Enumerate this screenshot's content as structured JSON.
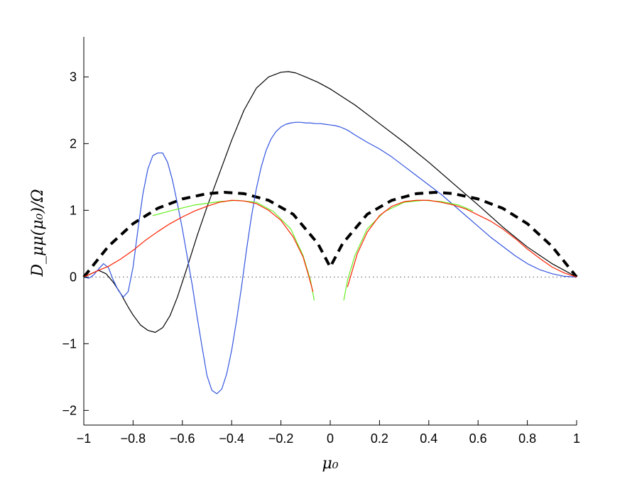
{
  "chart_data": {
    "type": "line",
    "title": "",
    "xlabel": "μ₀",
    "ylabel": "D_μμ(μ₀)/Ω",
    "xlim": [
      -1,
      1
    ],
    "ylim": [
      -2.22,
      3.6
    ],
    "xticks": [
      -1,
      -0.8,
      -0.6,
      -0.4,
      -0.2,
      0,
      0.2,
      0.4,
      0.6,
      0.8,
      1
    ],
    "xtick_labels": [
      "−1",
      "−0.8",
      "−0.6",
      "−0.4",
      "−0.2",
      "0",
      "0.2",
      "0.4",
      "0.6",
      "0.8",
      "1"
    ],
    "yticks": [
      -2,
      -1,
      0,
      1,
      2,
      3
    ],
    "ytick_labels": [
      "−2",
      "−1",
      "0",
      "1",
      "2",
      "3"
    ],
    "grid": false,
    "zero_line": {
      "style": "dotted",
      "color": "#555555"
    },
    "series": [
      {
        "color": "#000000",
        "style": "dashed",
        "width": 4,
        "x": [
          -1,
          -0.9,
          -0.8,
          -0.7,
          -0.6,
          -0.5,
          -0.43,
          -0.35,
          -0.25,
          -0.15,
          -0.05,
          0,
          0.05,
          0.15,
          0.25,
          0.35,
          0.43,
          0.5,
          0.6,
          0.7,
          0.8,
          0.9,
          1
        ],
        "y": [
          0,
          0.46,
          0.8,
          1.03,
          1.17,
          1.25,
          1.27,
          1.25,
          1.15,
          0.94,
          0.5,
          0.15,
          0.5,
          0.94,
          1.15,
          1.25,
          1.27,
          1.25,
          1.17,
          1.03,
          0.8,
          0.46,
          0
        ]
      },
      {
        "color": "#000000",
        "style": "solid",
        "width": 1.2,
        "x": [
          -1,
          -0.97,
          -0.94,
          -0.91,
          -0.88,
          -0.85,
          -0.82,
          -0.8,
          -0.77,
          -0.74,
          -0.71,
          -0.68,
          -0.65,
          -0.62,
          -0.58,
          -0.54,
          -0.5,
          -0.45,
          -0.4,
          -0.35,
          -0.3,
          -0.25,
          -0.2,
          -0.17,
          -0.14,
          -0.1,
          -0.05,
          0,
          0.05,
          0.1,
          0.2,
          0.3,
          0.4,
          0.5,
          0.6,
          0.7,
          0.8,
          0.9,
          1
        ],
        "y": [
          0,
          0.05,
          0.1,
          0.05,
          -0.08,
          -0.25,
          -0.45,
          -0.57,
          -0.72,
          -0.8,
          -0.83,
          -0.76,
          -0.58,
          -0.3,
          0.15,
          0.62,
          1.05,
          1.55,
          2.05,
          2.5,
          2.83,
          3.0,
          3.07,
          3.08,
          3.06,
          3.0,
          2.92,
          2.82,
          2.7,
          2.58,
          2.3,
          2.02,
          1.72,
          1.4,
          1.08,
          0.75,
          0.45,
          0.2,
          0
        ]
      },
      {
        "color": "#3355e0",
        "style": "solid",
        "width": 1.2,
        "x": [
          -1,
          -0.98,
          -0.96,
          -0.94,
          -0.92,
          -0.9,
          -0.88,
          -0.86,
          -0.84,
          -0.82,
          -0.8,
          -0.78,
          -0.76,
          -0.74,
          -0.72,
          -0.7,
          -0.68,
          -0.66,
          -0.64,
          -0.62,
          -0.6,
          -0.58,
          -0.56,
          -0.54,
          -0.52,
          -0.5,
          -0.48,
          -0.46,
          -0.44,
          -0.42,
          -0.4,
          -0.38,
          -0.36,
          -0.34,
          -0.32,
          -0.3,
          -0.28,
          -0.26,
          -0.24,
          -0.22,
          -0.2,
          -0.18,
          -0.16,
          -0.14,
          -0.12,
          -0.1,
          -0.08,
          -0.06,
          -0.04,
          -0.02,
          0,
          0.02,
          0.04,
          0.06,
          0.08,
          0.1,
          0.15,
          0.2,
          0.25,
          0.3,
          0.35,
          0.4,
          0.45,
          0.5,
          0.55,
          0.6,
          0.65,
          0.7,
          0.75,
          0.8,
          0.85,
          0.9,
          0.95,
          1
        ],
        "y": [
          0,
          -0.02,
          0.03,
          0.12,
          0.2,
          0.14,
          -0.05,
          -0.2,
          -0.3,
          -0.22,
          0.15,
          0.72,
          1.25,
          1.62,
          1.82,
          1.86,
          1.86,
          1.72,
          1.45,
          1.1,
          0.72,
          0.3,
          -0.12,
          -0.6,
          -1.05,
          -1.48,
          -1.7,
          -1.75,
          -1.68,
          -1.45,
          -1.1,
          -0.65,
          -0.15,
          0.4,
          0.9,
          1.32,
          1.65,
          1.9,
          2.07,
          2.18,
          2.25,
          2.29,
          2.31,
          2.32,
          2.32,
          2.31,
          2.31,
          2.3,
          2.3,
          2.29,
          2.28,
          2.27,
          2.25,
          2.22,
          2.18,
          2.13,
          2.02,
          1.92,
          1.8,
          1.66,
          1.52,
          1.38,
          1.24,
          1.08,
          0.92,
          0.76,
          0.6,
          0.46,
          0.32,
          0.2,
          0.11,
          0.05,
          0.01,
          0
        ]
      },
      {
        "color": "#66ee22",
        "style": "solid",
        "width": 1.2,
        "x": [
          -0.72,
          -0.65,
          -0.55,
          -0.45,
          -0.38,
          -0.3,
          -0.23,
          -0.16,
          -0.11,
          -0.08,
          -0.065,
          null,
          0.055,
          0.07,
          0.1,
          0.15,
          0.22,
          0.3,
          0.38,
          0.45,
          0.52,
          0.58
        ],
        "y": [
          0.92,
          0.99,
          1.08,
          1.13,
          1.15,
          1.12,
          0.98,
          0.72,
          0.32,
          -0.05,
          -0.35,
          null,
          -0.35,
          -0.05,
          0.32,
          0.72,
          0.98,
          1.12,
          1.15,
          1.13,
          1.08,
          0.99
        ]
      },
      {
        "color": "#ff2200",
        "style": "solid",
        "width": 1.2,
        "x": [
          -1,
          -0.97,
          -0.94,
          -0.9,
          -0.85,
          -0.8,
          -0.75,
          -0.7,
          -0.65,
          -0.6,
          -0.55,
          -0.5,
          -0.45,
          -0.4,
          -0.35,
          -0.3,
          -0.25,
          -0.2,
          -0.15,
          -0.11,
          -0.09,
          -0.07,
          null,
          0.07,
          0.09,
          0.11,
          0.15,
          0.2,
          0.25,
          0.3,
          0.35,
          0.4,
          0.45,
          0.5,
          0.55,
          0.6,
          0.65,
          0.7,
          0.75,
          0.8,
          0.85,
          0.9,
          0.95,
          1
        ],
        "y": [
          0,
          0.05,
          0.1,
          0.16,
          0.27,
          0.4,
          0.55,
          0.68,
          0.8,
          0.9,
          0.99,
          1.06,
          1.12,
          1.15,
          1.14,
          1.1,
          1.0,
          0.85,
          0.6,
          0.3,
          0.05,
          -0.22,
          null,
          -0.15,
          0.1,
          0.35,
          0.67,
          0.92,
          1.06,
          1.13,
          1.15,
          1.15,
          1.12,
          1.08,
          1.02,
          0.93,
          0.84,
          0.72,
          0.58,
          0.42,
          0.28,
          0.15,
          0.06,
          0
        ]
      }
    ]
  }
}
